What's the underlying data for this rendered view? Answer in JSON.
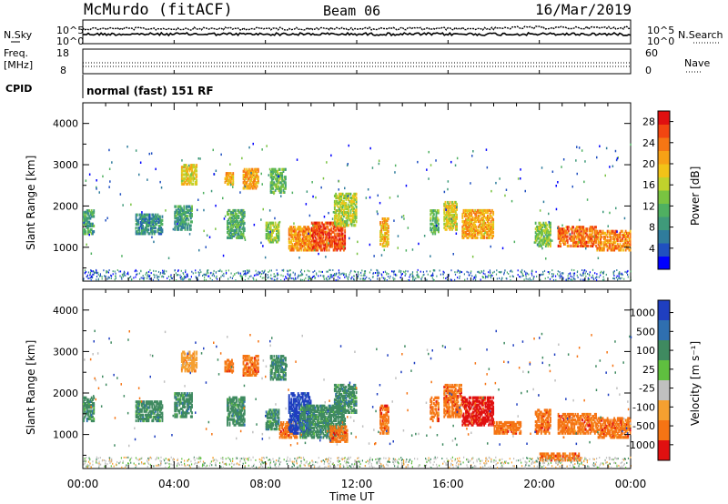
{
  "header": {
    "title": "McMurdo (fitACF)",
    "beam": "Beam 06",
    "date": "16/Mar/2019"
  },
  "summary_panels": {
    "nsky_label": "N.Sky",
    "nsearch_label": "N.Search",
    "noise_ticks_left": [
      "10^5",
      "10^0"
    ],
    "noise_ticks_right": [
      "10^5",
      "10^0"
    ],
    "freq_label_1": "Freq.",
    "freq_label_2": "[MHz]",
    "freq_ticks": [
      "18",
      "8"
    ],
    "nave_label": "Nave",
    "nave_ticks": [
      "60",
      "0"
    ],
    "cpid_label": "CPID",
    "cpid_text": "normal (fast) 151 RF"
  },
  "chart_data": [
    {
      "type": "heatmap",
      "name": "power",
      "ylabel": "Slant Range [km]",
      "y_ticks": [
        "1000",
        "2000",
        "3000",
        "4000"
      ],
      "y_range_km": [
        180,
        4500
      ],
      "x_range_hours": [
        0,
        24
      ],
      "colorbar_label": "Power [dB]",
      "colorbar_ticks": [
        "4",
        "8",
        "12",
        "16",
        "20",
        "24",
        "28"
      ],
      "colorbar_range": [
        0,
        30
      ],
      "colors": [
        "#0000ff",
        "#2050c0",
        "#2f7c9c",
        "#3f9a7a",
        "#4fb061",
        "#79c341",
        "#c0d22c",
        "#f2c318",
        "#f7a116",
        "#f57614",
        "#f24611",
        "#e01010"
      ],
      "patches": [
        {
          "t": [
            0.0,
            0.5
          ],
          "r": [
            1300,
            1900
          ],
          "v": 10
        },
        {
          "t": [
            2.3,
            3.5
          ],
          "r": [
            1300,
            1800
          ],
          "v": 8
        },
        {
          "t": [
            4.0,
            4.8
          ],
          "r": [
            1400,
            2000
          ],
          "v": 9
        },
        {
          "t": [
            6.3,
            7.1
          ],
          "r": [
            1200,
            1900
          ],
          "v": 11
        },
        {
          "t": [
            8.0,
            8.6
          ],
          "r": [
            1100,
            1600
          ],
          "v": 14
        },
        {
          "t": [
            9.0,
            10.0
          ],
          "r": [
            900,
            1500
          ],
          "v": 22
        },
        {
          "t": [
            10.0,
            11.5
          ],
          "r": [
            900,
            1600
          ],
          "v": 26
        },
        {
          "t": [
            11.0,
            12.0
          ],
          "r": [
            1500,
            2300
          ],
          "v": 16
        },
        {
          "t": [
            13.0,
            13.4
          ],
          "r": [
            1000,
            1700
          ],
          "v": 20
        },
        {
          "t": [
            15.2,
            15.6
          ],
          "r": [
            1300,
            1900
          ],
          "v": 12
        },
        {
          "t": [
            15.8,
            16.4
          ],
          "r": [
            1400,
            2100
          ],
          "v": 18
        },
        {
          "t": [
            16.6,
            18.0
          ],
          "r": [
            1200,
            1900
          ],
          "v": 21
        },
        {
          "t": [
            19.8,
            20.5
          ],
          "r": [
            1000,
            1600
          ],
          "v": 14
        },
        {
          "t": [
            20.8,
            22.5
          ],
          "r": [
            1000,
            1500
          ],
          "v": 24
        },
        {
          "t": [
            22.5,
            24.0
          ],
          "r": [
            900,
            1400
          ],
          "v": 23
        },
        {
          "t": [
            4.3,
            5.0
          ],
          "r": [
            2500,
            3000
          ],
          "v": 18
        },
        {
          "t": [
            6.2,
            6.6
          ],
          "r": [
            2500,
            2800
          ],
          "v": 20
        },
        {
          "t": [
            7.0,
            7.7
          ],
          "r": [
            2400,
            2900
          ],
          "v": 21
        },
        {
          "t": [
            8.2,
            8.9
          ],
          "r": [
            2300,
            2900
          ],
          "v": 12
        }
      ]
    },
    {
      "type": "heatmap",
      "name": "velocity",
      "ylabel": "Slant Range [km]",
      "y_ticks": [
        "1000",
        "2000",
        "3000",
        "4000"
      ],
      "y_range_km": [
        180,
        4500
      ],
      "x_range_hours": [
        0,
        24
      ],
      "colorbar_label": "Velocity [m s⁻¹]",
      "colorbar_ticks": [
        "1000",
        "500",
        "100",
        "25",
        "-25",
        "-100",
        "-500",
        "-1000"
      ],
      "colors": [
        "#1f3fc0",
        "#2f6fb0",
        "#3f8a60",
        "#5fbf3f",
        "#c0c0c0",
        "#f5a030",
        "#f57414",
        "#e01010"
      ],
      "patches": [
        {
          "t": [
            0.0,
            0.5
          ],
          "r": [
            1300,
            1900
          ],
          "c": 2
        },
        {
          "t": [
            2.3,
            3.5
          ],
          "r": [
            1300,
            1800
          ],
          "c": 2
        },
        {
          "t": [
            4.0,
            4.8
          ],
          "r": [
            1400,
            2000
          ],
          "c": 2
        },
        {
          "t": [
            6.3,
            7.1
          ],
          "r": [
            1200,
            1900
          ],
          "c": 2
        },
        {
          "t": [
            8.0,
            8.6
          ],
          "r": [
            1100,
            1600
          ],
          "c": 2
        },
        {
          "t": [
            8.6,
            9.4
          ],
          "r": [
            900,
            1300
          ],
          "c": 6
        },
        {
          "t": [
            9.0,
            10.0
          ],
          "r": [
            1000,
            2000
          ],
          "c": 0
        },
        {
          "t": [
            9.5,
            11.5
          ],
          "r": [
            900,
            1700
          ],
          "c": 2
        },
        {
          "t": [
            11.0,
            12.0
          ],
          "r": [
            1500,
            2200
          ],
          "c": 2
        },
        {
          "t": [
            10.8,
            11.6
          ],
          "r": [
            800,
            1200
          ],
          "c": 6
        },
        {
          "t": [
            13.0,
            13.4
          ],
          "r": [
            1000,
            1700
          ],
          "c": 6
        },
        {
          "t": [
            15.2,
            15.6
          ],
          "r": [
            1300,
            1900
          ],
          "c": 6
        },
        {
          "t": [
            15.8,
            16.6
          ],
          "r": [
            1400,
            2200
          ],
          "c": 6
        },
        {
          "t": [
            16.6,
            18.0
          ],
          "r": [
            1200,
            1900
          ],
          "c": 7
        },
        {
          "t": [
            18.0,
            19.2
          ],
          "r": [
            1000,
            1300
          ],
          "c": 6
        },
        {
          "t": [
            19.8,
            20.5
          ],
          "r": [
            1000,
            1600
          ],
          "c": 6
        },
        {
          "t": [
            20.8,
            22.5
          ],
          "r": [
            1000,
            1500
          ],
          "c": 6
        },
        {
          "t": [
            22.5,
            24.0
          ],
          "r": [
            900,
            1400
          ],
          "c": 6
        },
        {
          "t": [
            20.0,
            21.8
          ],
          "r": [
            350,
            550
          ],
          "c": 6
        },
        {
          "t": [
            4.3,
            5.0
          ],
          "r": [
            2500,
            3000
          ],
          "c": 5
        },
        {
          "t": [
            6.2,
            6.6
          ],
          "r": [
            2500,
            2800
          ],
          "c": 6
        },
        {
          "t": [
            7.0,
            7.7
          ],
          "r": [
            2400,
            2900
          ],
          "c": 6
        },
        {
          "t": [
            8.2,
            8.9
          ],
          "r": [
            2300,
            2900
          ],
          "c": 2
        }
      ]
    }
  ],
  "x_axis": {
    "ticks": [
      "00:00",
      "04:00",
      "08:00",
      "12:00",
      "16:00",
      "20:00",
      "00:00"
    ],
    "label": "Time UT"
  }
}
